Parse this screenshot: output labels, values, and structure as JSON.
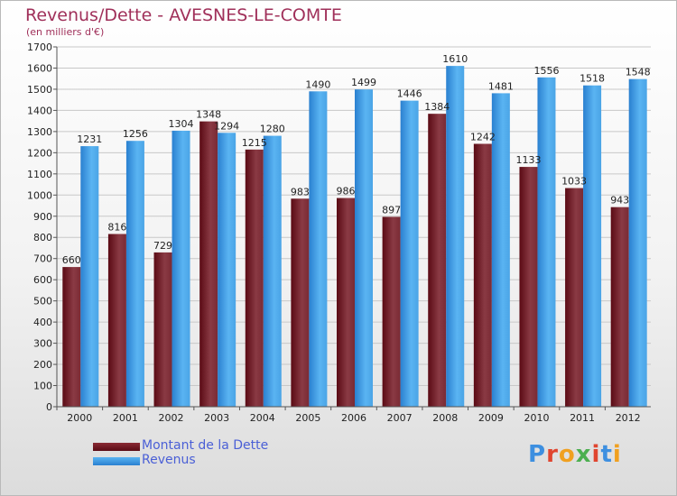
{
  "title": "Revenus/Dette - AVESNES-LE-COMTE",
  "subtitle": "(en milliers d'€)",
  "legend": [
    {
      "label": "Montant de la Dette",
      "color": "#6b0f1a"
    },
    {
      "label": "Revenus",
      "color": "#3d9be6"
    }
  ],
  "logo": "Proxiti",
  "colors": {
    "debt_dark": "#5a0a14",
    "debt_light": "#8a3a44",
    "rev_dark": "#2a80d0",
    "rev_light": "#5ab4f2",
    "title": "#a0305a"
  },
  "chart_data": {
    "type": "bar",
    "title": "Revenus/Dette - AVESNES-LE-COMTE",
    "ylabel": "(en milliers d'€)",
    "ylim": [
      0,
      1700
    ],
    "ytick_step": 100,
    "categories": [
      "2000",
      "2001",
      "2002",
      "2003",
      "2004",
      "2005",
      "2006",
      "2007",
      "2008",
      "2009",
      "2010",
      "2011",
      "2012"
    ],
    "series": [
      {
        "name": "Montant de la Dette",
        "values": [
          660,
          816,
          729,
          1348,
          1215,
          983,
          986,
          897,
          1384,
          1242,
          1133,
          1033,
          943
        ]
      },
      {
        "name": "Revenus",
        "values": [
          1231,
          1256,
          1304,
          1294,
          1280,
          1490,
          1499,
          1446,
          1610,
          1481,
          1556,
          1518,
          1548
        ]
      }
    ]
  }
}
